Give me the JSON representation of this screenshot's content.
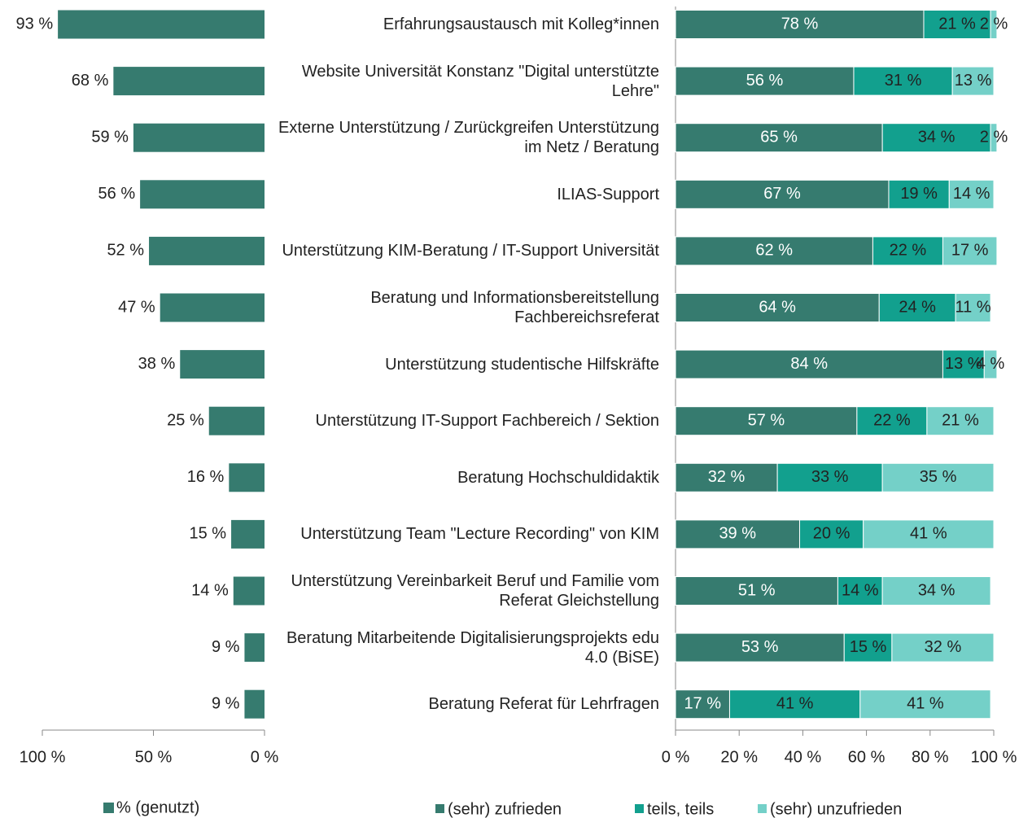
{
  "chart_data": [
    {
      "type": "hbar_reversed",
      "series": [
        {
          "name": "% (genutzt)",
          "color": "#367b6f",
          "values": [
            93,
            68,
            59,
            56,
            52,
            47,
            38,
            25,
            16,
            15,
            14,
            9,
            9
          ],
          "value_labels": [
            "93 %",
            "68 %",
            "59 %",
            "56 %",
            "52 %",
            "47 %",
            "38 %",
            "25 %",
            "16 %",
            "15 %",
            "14 %",
            "9 %",
            "9 %"
          ]
        }
      ],
      "xlim": [
        100,
        0
      ],
      "xticks": [
        {
          "value": 100,
          "label": "100 %"
        },
        {
          "value": 50,
          "label": "50 %"
        },
        {
          "value": 0,
          "label": "0 %"
        }
      ]
    },
    {
      "type": "stacked_hbar",
      "categories": [
        "Erfahrungsaustausch mit Kolleg*innen",
        "Website Universität Konstanz \"Digital unterstützte Lehre\"",
        "Externe Unterstützung / Zurückgreifen Unterstützung im Netz / Beratung",
        "ILIAS-Support",
        "Unterstützung KIM-Beratung / IT-Support Universität",
        "Beratung und Informationsbereitstellung Fachbereichsreferat",
        "Unterstützung studentische Hilfskräfte",
        "Unterstützung IT-Support Fachbereich / Sektion",
        "Beratung Hochschuldidaktik",
        "Unterstützung Team \"Lecture Recording\" von KIM",
        "Unterstützung Vereinbarkeit Beruf und Familie vom Referat Gleichstellung",
        "Beratung Mitarbeitende Digitalisierungsprojekts edu 4.0 (BiSE)",
        "Beratung Referat für Lehrfragen"
      ],
      "series": [
        {
          "name": "(sehr) zufrieden",
          "color": "#367b6f",
          "values": [
            78,
            56,
            65,
            67,
            62,
            64,
            84,
            57,
            32,
            39,
            51,
            53,
            17
          ],
          "value_labels": [
            "78 %",
            "56 %",
            "65 %",
            "67 %",
            "62 %",
            "64 %",
            "84 %",
            "57 %",
            "32 %",
            "39 %",
            "51 %",
            "53 %",
            "17 %"
          ]
        },
        {
          "name": "teils, teils",
          "color": "#12a08e",
          "values": [
            21,
            31,
            34,
            19,
            22,
            24,
            13,
            22,
            33,
            20,
            14,
            15,
            41
          ],
          "value_labels": [
            "21 %",
            "31 %",
            "34 %",
            "19 %",
            "22 %",
            "24 %",
            "13 %",
            "22 %",
            "33 %",
            "20 %",
            "14 %",
            "15 %",
            "41 %"
          ]
        },
        {
          "name": "(sehr) unzufrieden",
          "color": "#74d0c8",
          "values": [
            2,
            13,
            2,
            14,
            17,
            11,
            4,
            21,
            35,
            41,
            34,
            32,
            41
          ],
          "value_labels": [
            "2 %",
            "13 %",
            "2 %",
            "14 %",
            "17 %",
            "11 %",
            "4 %",
            "21 %",
            "35 %",
            "41 %",
            "34 %",
            "32 %",
            "41 %"
          ]
        }
      ],
      "xlim": [
        0,
        100
      ],
      "xticks": [
        {
          "value": 0,
          "label": "0 %"
        },
        {
          "value": 20,
          "label": "20 %"
        },
        {
          "value": 40,
          "label": "40 %"
        },
        {
          "value": 60,
          "label": "60 %"
        },
        {
          "value": 80,
          "label": "80 %"
        },
        {
          "value": 100,
          "label": "100 %"
        }
      ]
    }
  ]
}
